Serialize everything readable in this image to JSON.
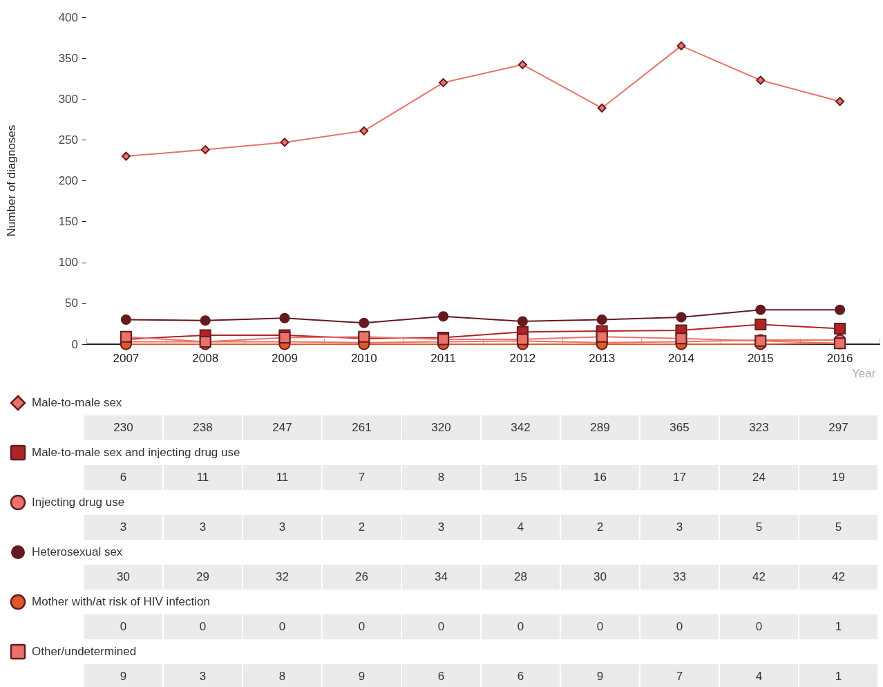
{
  "chart_data": {
    "type": "line",
    "ylabel": "Number of diagnoses",
    "xlabel": "Year",
    "categories": [
      "2007",
      "2008",
      "2009",
      "2010",
      "2011",
      "2012",
      "2013",
      "2014",
      "2015",
      "2016"
    ],
    "ylim": [
      0,
      400
    ],
    "yticks": [
      0,
      50,
      100,
      150,
      200,
      250,
      300,
      350,
      400
    ],
    "grid": false,
    "legend": "bottom",
    "data_labels": true,
    "series": [
      {
        "name": "Male-to-male sex",
        "color": "#e8736b",
        "marker": "diamond",
        "values": [
          230,
          238,
          247,
          261,
          320,
          342,
          289,
          365,
          323,
          297
        ]
      },
      {
        "name": "Male-to-male sex and injecting drug use",
        "color": "#b02426",
        "marker": "square",
        "values": [
          6,
          11,
          11,
          7,
          8,
          15,
          16,
          17,
          24,
          19
        ]
      },
      {
        "name": "Injecting drug use",
        "color": "#e8736b",
        "marker": "circle",
        "values": [
          3,
          3,
          3,
          2,
          3,
          4,
          2,
          3,
          5,
          5
        ]
      },
      {
        "name": "Heterosexual sex",
        "color": "#661a1f",
        "marker": "circle",
        "values": [
          30,
          29,
          32,
          26,
          34,
          28,
          30,
          33,
          42,
          42
        ]
      },
      {
        "name": "Mother with/at risk of HIV infection",
        "color": "#dc5a28",
        "marker": "circle",
        "values": [
          0,
          0,
          0,
          0,
          0,
          0,
          0,
          0,
          0,
          1
        ]
      },
      {
        "name": "Other/undetermined",
        "color": "#e8736b",
        "marker": "square",
        "values": [
          9,
          3,
          8,
          9,
          6,
          6,
          9,
          7,
          4,
          1
        ]
      }
    ]
  }
}
